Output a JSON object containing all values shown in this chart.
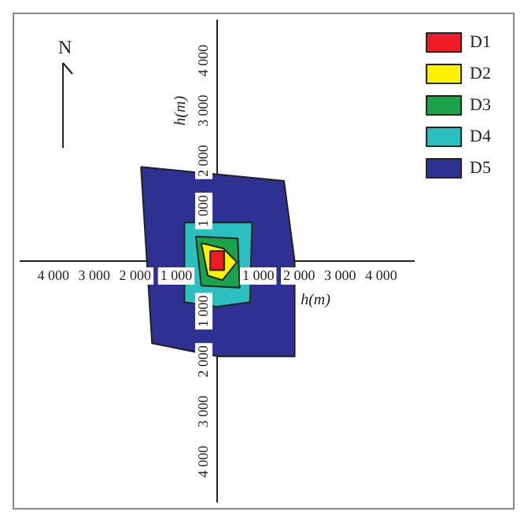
{
  "chart_data": {
    "type": "area",
    "xlabel": "h(m)",
    "ylabel": "h(m)",
    "annotations": [
      "N"
    ],
    "xlim": [
      -4800,
      4800
    ],
    "ylim": [
      -4800,
      4800
    ],
    "xticks": [
      {
        "value": -4000,
        "label": "4 000"
      },
      {
        "value": -3000,
        "label": "3 000"
      },
      {
        "value": -2000,
        "label": "2 000"
      },
      {
        "value": -1000,
        "label": "1 000"
      },
      {
        "value": 1000,
        "label": "1 000"
      },
      {
        "value": 2000,
        "label": "2 000"
      },
      {
        "value": 3000,
        "label": "3 000"
      },
      {
        "value": 4000,
        "label": "4 000"
      }
    ],
    "yticks": [
      {
        "value": -4000,
        "label": "4 000"
      },
      {
        "value": -3000,
        "label": "3 000"
      },
      {
        "value": -2000,
        "label": "2 000"
      },
      {
        "value": -1000,
        "label": "1 000"
      },
      {
        "value": 1000,
        "label": "1 000"
      },
      {
        "value": 2000,
        "label": "2 000"
      },
      {
        "value": 3000,
        "label": "3 000"
      },
      {
        "value": 4000,
        "label": "4 000"
      }
    ],
    "legend": "top right",
    "marker": "none",
    "grid": false,
    "series": [
      {
        "name": "D1",
        "color": "#ee1c24",
        "x": [
          -170,
          170,
          170,
          -170,
          -170
        ],
        "values": [
          200,
          200,
          -180,
          -180,
          200
        ]
      },
      {
        "name": "D2",
        "color": "#fff200",
        "x": [
          -390,
          150,
          480,
          130,
          -230,
          -390
        ],
        "values": [
          360,
          250,
          -20,
          -380,
          -290,
          360
        ]
      },
      {
        "name": "D3",
        "color": "#1aa34a",
        "x": [
          -520,
          500,
          550,
          -390,
          -520
        ],
        "values": [
          490,
          450,
          -530,
          -490,
          490
        ]
      },
      {
        "name": "D4",
        "color": "#2bbfbf",
        "x": [
          -800,
          850,
          800,
          0,
          -800,
          -800
        ],
        "values": [
          770,
          770,
          -820,
          -910,
          -820,
          770
        ]
      },
      {
        "name": "D5",
        "color": "#2e3192",
        "x": [
          -1860,
          1630,
          1890,
          1890,
          0,
          -1590,
          -1860
        ],
        "values": [
          1880,
          1600,
          0,
          -1900,
          -1900,
          -1640,
          1880
        ]
      }
    ]
  }
}
